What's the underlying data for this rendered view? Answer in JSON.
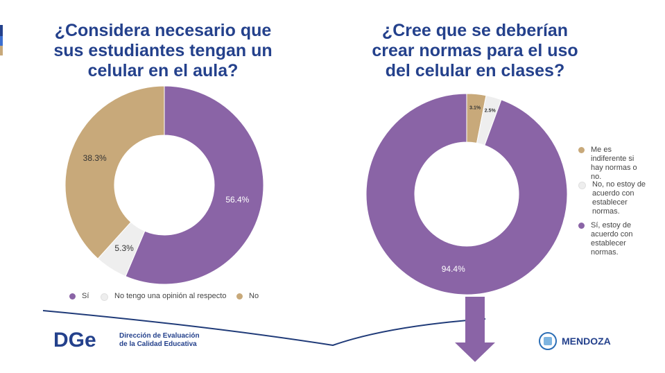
{
  "chart_data": [
    {
      "type": "donut",
      "title": "¿Considera necesario que sus estudiantes tengan un celular en el aula?",
      "categories": [
        "Sí",
        "No tengo una opinión al respecto",
        "No"
      ],
      "values": [
        56.4,
        5.3,
        38.3
      ],
      "value_labels": [
        "56.4%",
        "5.3%",
        "38.3%"
      ],
      "colors": [
        "#8a64a6",
        "#eeeeee",
        "#c8a97a"
      ],
      "legend": "bottom"
    },
    {
      "type": "donut",
      "title": "¿Cree que se deberían crear normas para el uso del celular en clases?",
      "categories": [
        "Me es indiferente si hay normas o no.",
        "No, no estoy de acuerdo con establecer normas.",
        "Sí, estoy de acuerdo con establecer normas."
      ],
      "values": [
        3.1,
        2.5,
        94.4
      ],
      "value_labels": [
        "3.1%",
        "2.5%",
        "94.4%"
      ],
      "colors": [
        "#c8a97a",
        "#eeeeee",
        "#8a64a6"
      ],
      "legend": "right"
    }
  ],
  "footer": {
    "logo": "DGe",
    "org": "Dirección de Evaluación de la Calidad Educativa",
    "province": "MENDOZA"
  }
}
